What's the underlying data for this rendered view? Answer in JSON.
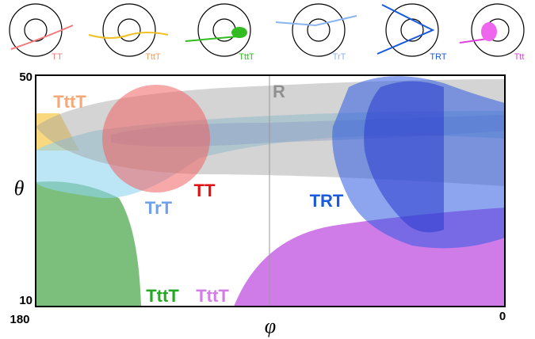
{
  "icons": [
    {
      "label": "TT",
      "color": "#f07a7a"
    },
    {
      "label": "TttT",
      "color": "#f0a060"
    },
    {
      "label": "TttT",
      "color": "#33bb22"
    },
    {
      "label": "TrT",
      "color": "#8ab4f0"
    },
    {
      "label": "TRT",
      "color": "#1a5adc"
    },
    {
      "label": "Ttt",
      "color": "#dd44dd"
    }
  ],
  "axes": {
    "y_label": "θ",
    "x_label": "φ",
    "y_top": "50",
    "y_bottom": "10",
    "x_left": "180",
    "x_right": "0"
  },
  "regions": [
    {
      "label": "R",
      "color": "#909090"
    },
    {
      "label": "TttT",
      "color": "#f5a878"
    },
    {
      "label": "TT",
      "color": "#e01010"
    },
    {
      "label": "TrT",
      "color": "#6fa0ee"
    },
    {
      "label": "TRT",
      "color": "#1a5adc"
    },
    {
      "label": "TttT",
      "color": "#22aa22"
    },
    {
      "label": "TttT",
      "color": "#d47ce8"
    }
  ]
}
